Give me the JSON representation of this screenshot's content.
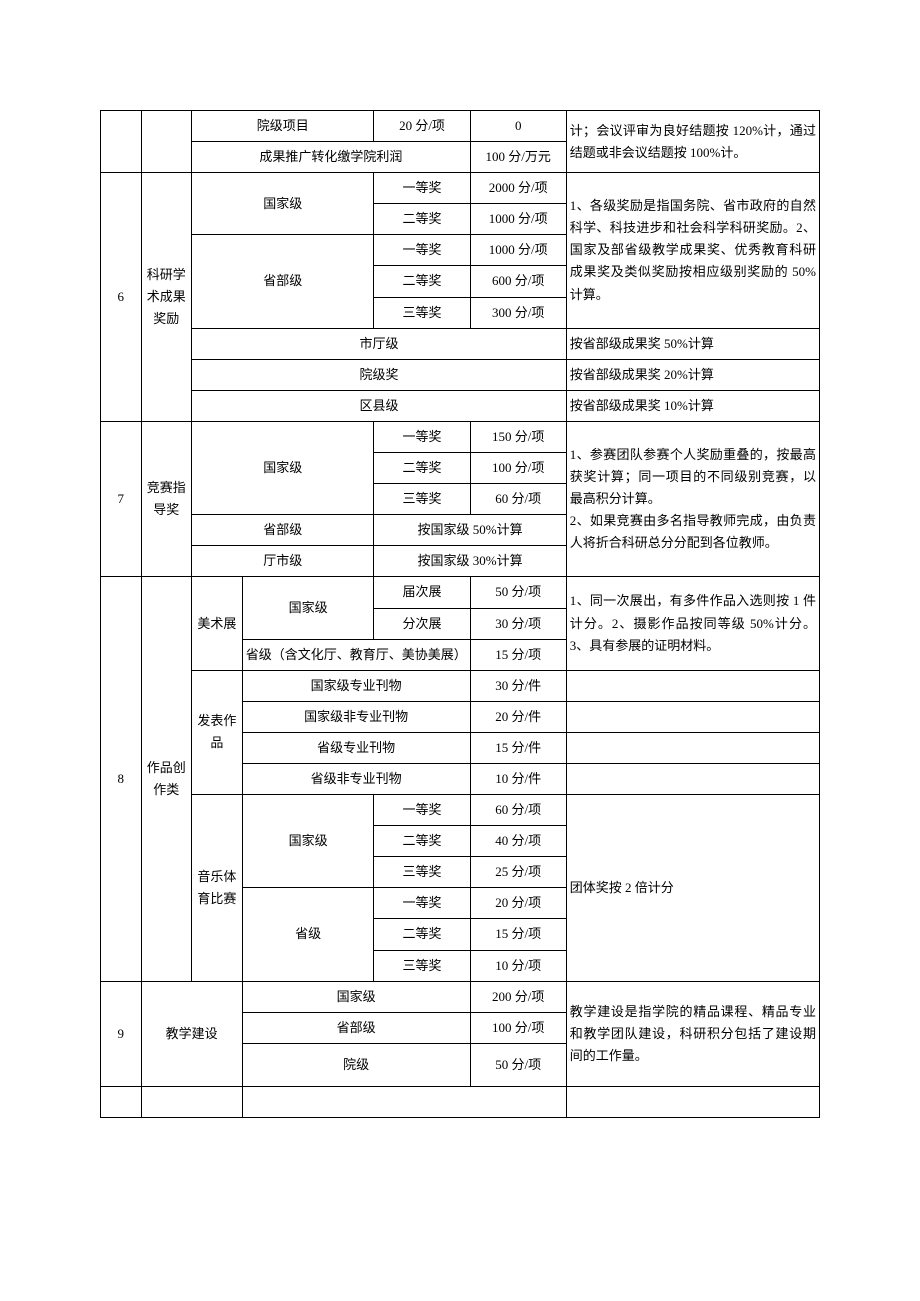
{
  "r1": {
    "c1": "院级项目",
    "c2": "20 分/项",
    "c3": "0"
  },
  "r2": {
    "c1": "成果推广转化缴学院利润",
    "c2": "100 分/万元"
  },
  "noteTop": "计；会议评审为良好结题按 120%计，通过结题或非会议结题按 100%计。",
  "sec6": {
    "num": "6",
    "cat": "科研学术成果奖励",
    "gj": "国家级",
    "gj1": "一等奖",
    "gj1p": "2000 分/项",
    "gj2": "二等奖",
    "gj2p": "1000 分/项",
    "sb": "省部级",
    "sb1": "一等奖",
    "sb1p": "1000 分/项",
    "sb2": "二等奖",
    "sb2p": "600 分/项",
    "sb3": "三等奖",
    "sb3p": "300 分/项",
    "st": "市厅级",
    "stn": "按省部级成果奖 50%计算",
    "yj": "院级奖",
    "yjn": "按省部级成果奖 20%计算",
    "qx": "区县级",
    "qxn": "按省部级成果奖 10%计算",
    "note": "1、各级奖励是指国务院、省市政府的自然科学、科技进步和社会科学科研奖励。2、国家及部省级教学成果奖、优秀教育科研成果奖及类似奖励按相应级别奖励的 50%计算。"
  },
  "sec7": {
    "num": "7",
    "cat": "竞赛指导奖",
    "gj": "国家级",
    "a1": "一等奖",
    "p1": "150 分/项",
    "a2": "二等奖",
    "p2": "100 分/项",
    "a3": "三等奖",
    "p3": "60 分/项",
    "sb": "省部级",
    "sbp": "按国家级 50%计算",
    "ts": "厅市级",
    "tsp": "按国家级 30%计算",
    "note": "1、参赛团队参赛个人奖励重叠的，按最高获奖计算；同一项目的不同级别竞赛，以最高积分计算。\n2、如果竞赛由多名指导教师完成，由负责人将折合科研总分分配到各位教师。"
  },
  "sec8": {
    "num": "8",
    "cat": "作品创作类",
    "ms": "美术展",
    "msgj": "国家级",
    "ms1": "届次展",
    "ms1p": "50 分/项",
    "ms2": "分次展",
    "ms2p": "30 分/项",
    "mssj": "省级（含文化厅、教育厅、美协美展）",
    "mssjp": "15 分/项",
    "msnote": "1、同一次展出，有多件作品入选则按 1 件计分。2、摄影作品按同等级 50%计分。3、具有参展的证明材料。",
    "fb": "发表作品",
    "fb1": "国家级专业刊物",
    "fb1p": "30 分/件",
    "fb2": "国家级非专业刊物",
    "fb2p": "20 分/件",
    "fb3": "省级专业刊物",
    "fb3p": "15 分/件",
    "fb4": "省级非专业刊物",
    "fb4p": "10 分/件",
    "yt": "音乐体育比赛",
    "ytgj": "国家级",
    "yg1": "一等奖",
    "yg1p": "60 分/项",
    "yg2": "二等奖",
    "yg2p": "40 分/项",
    "yg3": "三等奖",
    "yg3p": "25 分/项",
    "ytsj": "省级",
    "ys1": "一等奖",
    "ys1p": "20 分/项",
    "ys2": "二等奖",
    "ys2p": "15 分/项",
    "ys3": "三等奖",
    "ys3p": "10 分/项",
    "ytnote": "团体奖按 2 倍计分"
  },
  "sec9": {
    "num": "9",
    "cat": "教学建设",
    "gj": "国家级",
    "gjp": "200 分/项",
    "sb": "省部级",
    "sbp": "100 分/项",
    "yj": "院级",
    "yjp": "50 分/项",
    "note": "教学建设是指学院的精品课程、精品专业和教学团队建设，科研积分包括了建设期间的工作量。"
  }
}
